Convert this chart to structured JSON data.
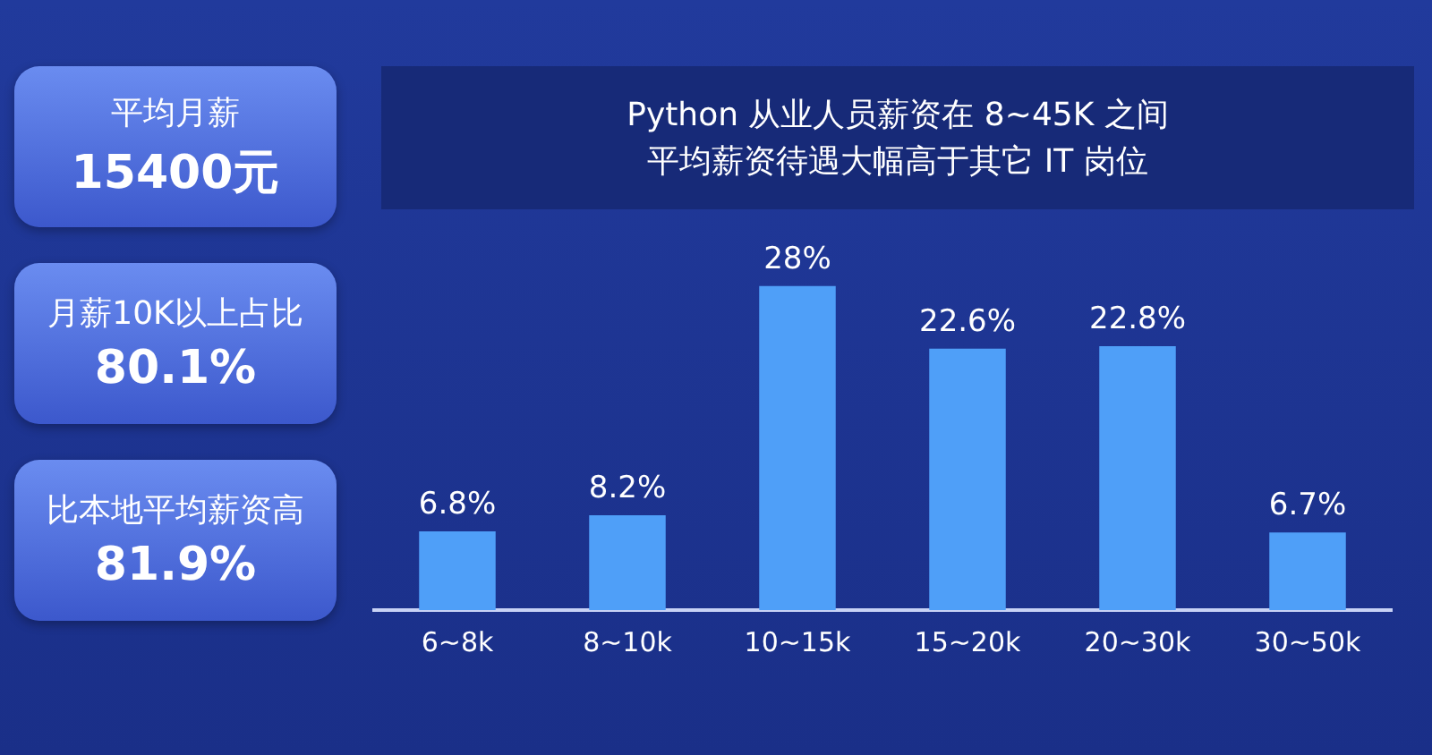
{
  "chart_data": [
    {
      "type": "other",
      "annotations": [
        "平均月薪",
        "15400元",
        "月薪10K以上占比",
        "80.1%",
        "比本地平均薪资高",
        "81.9%"
      ]
    },
    {
      "type": "bar",
      "title": "Python 从业人员薪资在 8~45K 之间",
      "subtitle": "平均薪资待遇大幅高于其它 IT 岗位",
      "categories": [
        "6~8k",
        "8~10k",
        "10~15k",
        "15~20k",
        "20~30k",
        "30~50k"
      ],
      "values": [
        6.8,
        8.2,
        28,
        22.6,
        22.8,
        6.7
      ],
      "value_labels": [
        "6.8%",
        "8.2%",
        "28%",
        "22.6%",
        "22.8%",
        "6.7%"
      ],
      "color": "#4f9ff8",
      "grid": false,
      "legend": false
    }
  ]
}
